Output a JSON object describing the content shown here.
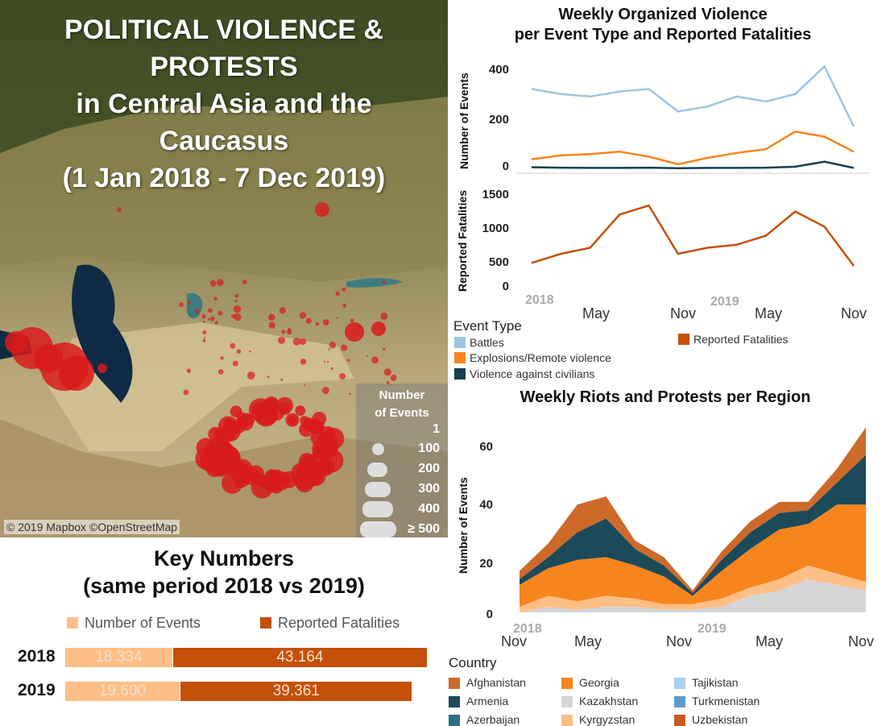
{
  "map": {
    "title_lines": [
      "POLITICAL VIOLENCE &",
      "PROTESTS",
      "in Central Asia and the",
      "Caucasus",
      "(1 Jan 2018 - 7 Dec 2019)"
    ],
    "attribution": "© 2019 Mapbox ©OpenStreetMap",
    "size_legend": {
      "title_lines": [
        "Number",
        "of Events"
      ],
      "labels": [
        "1",
        "100",
        "200",
        "300",
        "400",
        "≥ 500"
      ]
    },
    "colors": {
      "event": "#d81b1b",
      "land": "#8a7a4a",
      "water": "#0f2a44"
    }
  },
  "key_numbers": {
    "title_lines": [
      "Key Numbers",
      "(same period 2018 vs 2019)"
    ],
    "legend": [
      "Number of Events",
      "Reported Fatalities"
    ],
    "colors": {
      "events": "#fdbf86",
      "fatalities": "#c5500a"
    },
    "rows": [
      {
        "year": "2018",
        "events_label": "18.334",
        "fatalities_label": "43.164",
        "events": 18334,
        "fatalities": 43164
      },
      {
        "year": "2019",
        "events_label": "19.600",
        "fatalities_label": "39.361",
        "events": 19600,
        "fatalities": 39361
      }
    ]
  },
  "organized_violence": {
    "title_lines": [
      "Weekly Organized Violence",
      "per Event Type and Reported Fatalities"
    ],
    "events_ylabel": "Number of Events",
    "fatalities_ylabel": "Reported Fatalities",
    "events_ticks": [
      "400",
      "200",
      "0"
    ],
    "fatalities_ticks": [
      "1500",
      "1000",
      "500",
      "0"
    ],
    "x_ticks": [
      "May",
      "Nov",
      "May",
      "Nov"
    ],
    "year_labels": [
      "2018",
      "2019"
    ],
    "legend_head": "Event Type",
    "legend": [
      {
        "name": "Battles",
        "color": "#9ec5e4"
      },
      {
        "name": "Explosions/Remote violence",
        "color": "#f7851d"
      },
      {
        "name": "Violence against civilians",
        "color": "#15404f"
      }
    ],
    "fatalities_legend": {
      "name": "Reported Fatalities",
      "color": "#c5500a"
    }
  },
  "riots": {
    "title": "Weekly Riots and Protests per Region",
    "ylabel": "Number of Events",
    "y_ticks": [
      "60",
      "40",
      "20",
      "0"
    ],
    "x_ticks": [
      "Nov",
      "May",
      "Nov",
      "May",
      "Nov"
    ],
    "year_labels": [
      "2018",
      "2019"
    ],
    "legend_head": "Country",
    "legend": [
      {
        "name": "Afghanistan",
        "color": "#cd6a2a"
      },
      {
        "name": "Georgia",
        "color": "#f7851d"
      },
      {
        "name": "Tajikistan",
        "color": "#a9d0ec"
      },
      {
        "name": "Armenia",
        "color": "#1d4a59"
      },
      {
        "name": "Kazakhstan",
        "color": "#d5d5d5"
      },
      {
        "name": "Turkmenistan",
        "color": "#5f9bd0"
      },
      {
        "name": "Azerbaijan",
        "color": "#2b7285"
      },
      {
        "name": "Kyrgyzstan",
        "color": "#fdbf86"
      },
      {
        "name": "Uzbekistan",
        "color": "#c85a1f"
      }
    ]
  },
  "chart_data": [
    {
      "type": "line",
      "title": "Weekly Organized Violence per Event Type and Reported Fatalities",
      "ylabel": "Number of Events",
      "ylim": [
        0,
        450
      ],
      "x": [
        "2018-01",
        "2018-03",
        "2018-05",
        "2018-07",
        "2018-09",
        "2018-11",
        "2019-01",
        "2019-03",
        "2019-05",
        "2019-07",
        "2019-09",
        "2019-11"
      ],
      "series": [
        {
          "name": "Battles",
          "values": [
            320,
            300,
            290,
            310,
            320,
            230,
            250,
            290,
            270,
            300,
            410,
            170
          ]
        },
        {
          "name": "Explosions/Remote violence",
          "values": [
            40,
            55,
            60,
            70,
            50,
            20,
            45,
            65,
            80,
            150,
            130,
            70
          ]
        },
        {
          "name": "Violence against civilians",
          "values": [
            8,
            6,
            5,
            5,
            6,
            4,
            5,
            5,
            6,
            10,
            30,
            5
          ]
        }
      ]
    },
    {
      "type": "line",
      "ylabel": "Reported Fatalities",
      "ylim": [
        0,
        1800
      ],
      "x": [
        "2018-01",
        "2018-03",
        "2018-05",
        "2018-07",
        "2018-09",
        "2018-11",
        "2019-01",
        "2019-03",
        "2019-05",
        "2019-07",
        "2019-09",
        "2019-11"
      ],
      "series": [
        {
          "name": "Reported Fatalities",
          "values": [
            450,
            600,
            700,
            1250,
            1400,
            600,
            700,
            750,
            900,
            1300,
            1050,
            400
          ]
        }
      ]
    },
    {
      "type": "area",
      "title": "Weekly Riots and Protests per Region",
      "ylabel": "Number of Events",
      "ylim": [
        0,
        70
      ],
      "x": [
        "2017-11",
        "2018-01",
        "2018-03",
        "2018-05",
        "2018-07",
        "2018-09",
        "2018-11",
        "2019-01",
        "2019-03",
        "2019-05",
        "2019-07",
        "2019-09",
        "2019-11"
      ],
      "series": [
        {
          "name": "Kazakhstan",
          "values": [
            0,
            2,
            1,
            2,
            2,
            1,
            1,
            2,
            6,
            8,
            12,
            10,
            8
          ]
        },
        {
          "name": "Kyrgyzstan",
          "values": [
            2,
            4,
            3,
            4,
            3,
            2,
            2,
            3,
            3,
            4,
            5,
            4,
            3
          ]
        },
        {
          "name": "Georgia",
          "values": [
            8,
            10,
            15,
            14,
            12,
            10,
            3,
            10,
            14,
            18,
            15,
            25,
            28
          ]
        },
        {
          "name": "Armenia",
          "values": [
            2,
            4,
            10,
            14,
            6,
            4,
            1,
            4,
            6,
            6,
            5,
            8,
            18
          ]
        },
        {
          "name": "Afghanistan",
          "values": [
            3,
            5,
            10,
            8,
            3,
            3,
            1,
            3,
            4,
            4,
            3,
            5,
            10
          ]
        }
      ]
    }
  ]
}
